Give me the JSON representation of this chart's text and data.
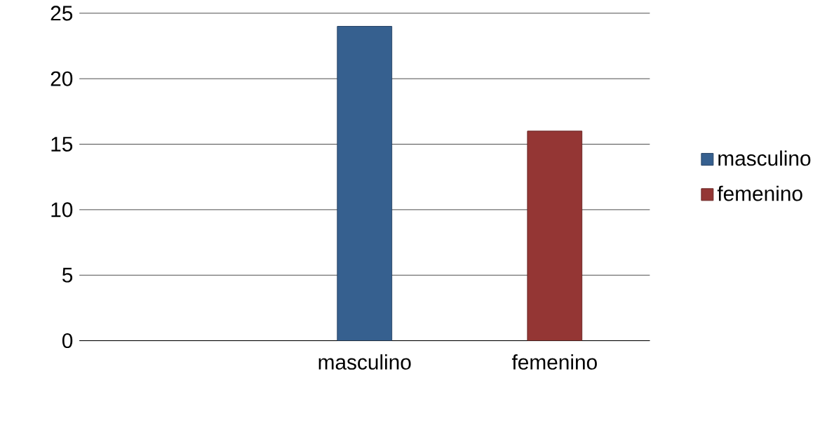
{
  "chart_data": {
    "type": "bar",
    "categories": [
      null,
      "masculino",
      "femenino"
    ],
    "series": [
      {
        "name": "masculino",
        "color": "#36608f",
        "values": [
          null,
          24,
          null
        ]
      },
      {
        "name": "femenino",
        "color": "#943634",
        "values": [
          null,
          null,
          16
        ]
      }
    ],
    "ylim": [
      0,
      25
    ],
    "yticks": [
      0,
      5,
      10,
      15,
      20,
      25
    ],
    "grid": "y",
    "legend": "right"
  }
}
